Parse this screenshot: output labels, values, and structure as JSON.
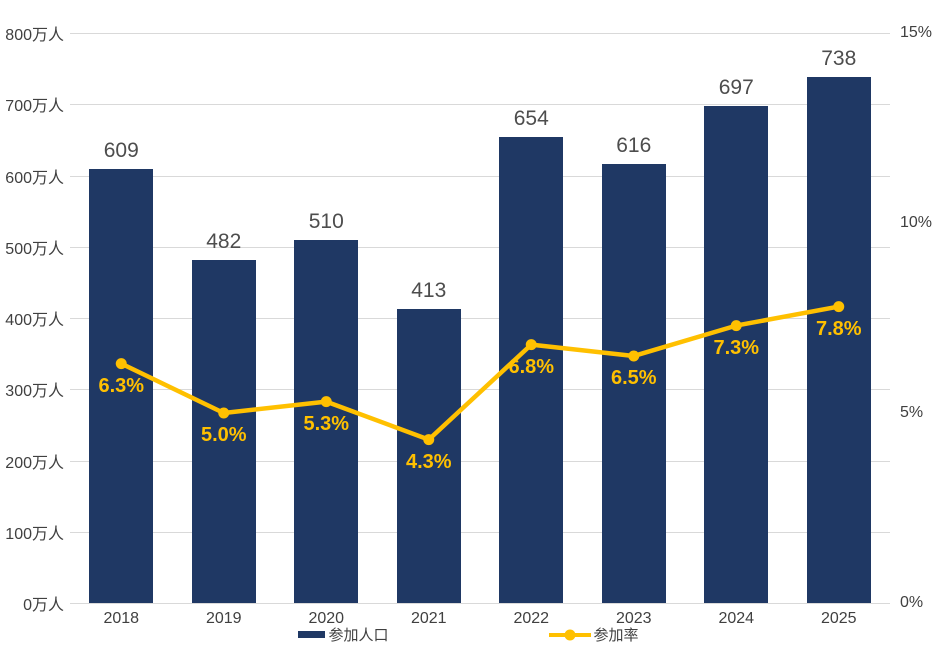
{
  "chart_data": {
    "type": "combo",
    "categories": [
      "2018",
      "2019",
      "2020",
      "2021",
      "2022",
      "2023",
      "2024",
      "2025"
    ],
    "series": [
      {
        "name": "参加人口",
        "type": "bar",
        "axis": "left",
        "unit": "万人",
        "color": "#1f3864",
        "values": [
          609,
          482,
          510,
          413,
          654,
          616,
          697,
          738
        ],
        "value_labels": [
          "609",
          "482",
          "510",
          "413",
          "654",
          "616",
          "697",
          "738"
        ]
      },
      {
        "name": "参加率",
        "type": "line",
        "axis": "right",
        "unit": "%",
        "color": "#ffc000",
        "values": [
          6.3,
          5.0,
          5.3,
          4.3,
          6.8,
          6.5,
          7.3,
          7.8
        ],
        "value_labels": [
          "6.3%",
          "5.0%",
          "5.3%",
          "4.3%",
          "6.8%",
          "6.5%",
          "7.3%",
          "7.8%"
        ]
      }
    ],
    "left_axis": {
      "min": 0,
      "max": 800,
      "step": 100,
      "tick_labels": [
        "0万人",
        "100万人",
        "200万人",
        "300万人",
        "400万人",
        "500万人",
        "600万人",
        "700万人",
        "800万人"
      ]
    },
    "right_axis": {
      "min": 0,
      "max": 15,
      "step": 5,
      "tick_labels": [
        "0%",
        "5%",
        "10%",
        "15%"
      ]
    },
    "title": "",
    "grid": "horizontal-only",
    "legend_position": "bottom"
  },
  "legend": {
    "items": [
      {
        "label": "参加人口",
        "marker": "bar-swatch",
        "color": "#1f3864"
      },
      {
        "label": "参加率",
        "marker": "line-with-dot",
        "color": "#ffc000"
      }
    ]
  },
  "colors": {
    "bar": "#1f3864",
    "line": "#ffc000",
    "grid": "#d9d9d9",
    "axis_text": "#404040",
    "bar_value_text": "#4d4d4d",
    "background": "#ffffff"
  }
}
